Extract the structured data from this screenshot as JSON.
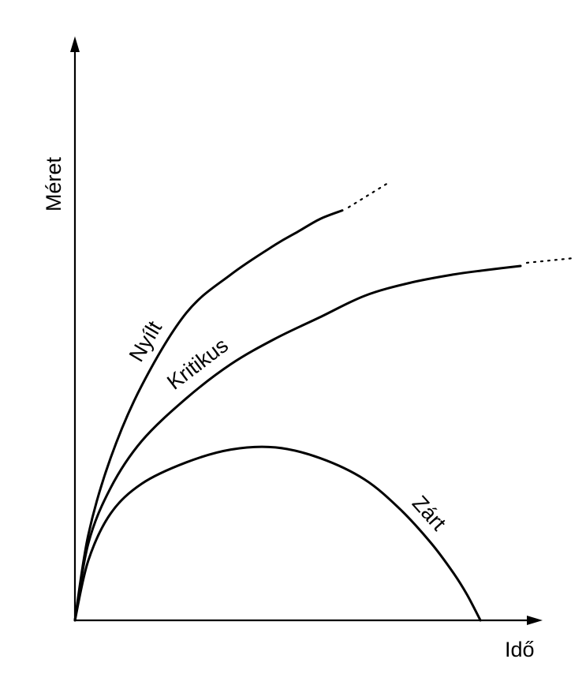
{
  "chart_data": {
    "type": "line",
    "title": "",
    "xlabel": "Idő",
    "ylabel": "Méret",
    "xlim": [
      0,
      10
    ],
    "ylim": [
      0,
      10
    ],
    "ticks": false,
    "grid": false,
    "series": [
      {
        "name": "Nyílt",
        "x": [
          0,
          0.3,
          0.8,
          1.5,
          2.5,
          3.5,
          4.5,
          5.0,
          5.5,
          6.0
        ],
        "y": [
          0,
          2.0,
          3.8,
          5.5,
          7.2,
          8.1,
          8.8,
          9.1,
          9.4,
          9.6
        ],
        "continues_dotted": true
      },
      {
        "name": "Kritikus",
        "x": [
          0,
          0.3,
          0.8,
          1.5,
          2.5,
          3.5,
          4.5,
          5.5,
          6.5,
          7.5,
          8.5,
          9.2,
          10.0
        ],
        "y": [
          0,
          1.8,
          3.1,
          4.2,
          5.2,
          6.0,
          6.6,
          7.1,
          7.6,
          7.9,
          8.1,
          8.2,
          8.3
        ],
        "continues_dotted": true
      },
      {
        "name": "Zárt",
        "x": [
          0,
          0.3,
          0.8,
          1.5,
          2.5,
          3.5,
          4.5,
          5.5,
          6.5,
          7.3,
          8.0,
          8.5,
          8.8,
          9.1
        ],
        "y": [
          0,
          1.4,
          2.5,
          3.2,
          3.7,
          4.0,
          4.05,
          3.8,
          3.3,
          2.6,
          1.8,
          1.1,
          0.6,
          0.0
        ],
        "continues_dotted": false
      }
    ]
  }
}
